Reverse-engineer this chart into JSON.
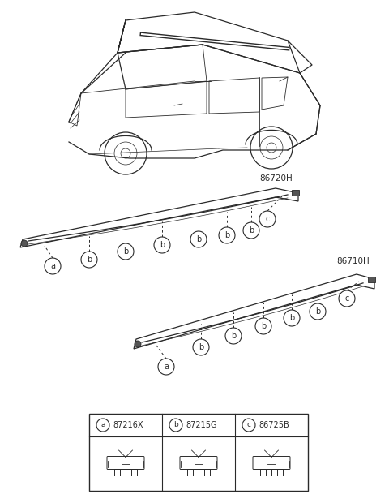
{
  "bg_color": "#ffffff",
  "lc": "#2a2a2a",
  "fig_w": 4.8,
  "fig_h": 6.2,
  "dpi": 100,
  "part1_label": "86720H",
  "part2_label": "86710H",
  "legend": [
    {
      "letter": "a",
      "code": "87216X"
    },
    {
      "letter": "b",
      "code": "87215G"
    },
    {
      "letter": "c",
      "code": "86725B"
    }
  ]
}
